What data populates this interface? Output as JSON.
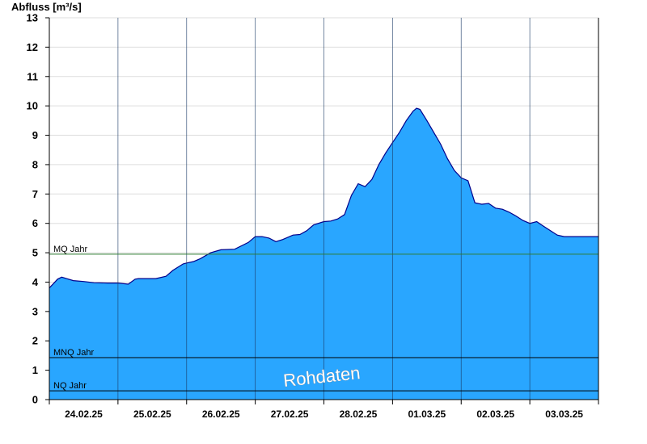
{
  "chart_data": {
    "type": "area",
    "ylabel": "Abfluss [m³/s]",
    "ylim": [
      0,
      13
    ],
    "yticks": [
      0,
      1,
      2,
      3,
      4,
      5,
      6,
      7,
      8,
      9,
      10,
      11,
      12,
      13
    ],
    "xlim": [
      0,
      8
    ],
    "x_tick_labels": [
      "24.02.25",
      "25.02.25",
      "26.02.25",
      "27.02.25",
      "28.02.25",
      "01.03.25",
      "02.03.25",
      "03.03.25"
    ],
    "watermark": "Rohdaten",
    "colors": {
      "fill": "#29a6ff",
      "line": "#00008b",
      "mq": "#2e7d32",
      "ref": "#000000",
      "grid": "#dddddd"
    },
    "reference_lines": [
      {
        "label": "MQ Jahr",
        "value": 4.95
      },
      {
        "label": "MNQ Jahr",
        "value": 1.43
      },
      {
        "label": "NQ Jahr",
        "value": 0.3
      }
    ],
    "series": [
      {
        "x": [
          0,
          0.06,
          0.12,
          0.18,
          0.25,
          0.35,
          0.5,
          0.65,
          0.85,
          1.0,
          1.15,
          1.25,
          1.3,
          1.4,
          1.55,
          1.7,
          1.8,
          1.95,
          2.0,
          2.1,
          2.2,
          2.35,
          2.5,
          2.7,
          2.9,
          3.0,
          3.1,
          3.2,
          3.3,
          3.4,
          3.55,
          3.65,
          3.75,
          3.85,
          4.0,
          4.1,
          4.2,
          4.3,
          4.4,
          4.5,
          4.6,
          4.7,
          4.8,
          4.9,
          5.0,
          5.1,
          5.2,
          5.3,
          5.35,
          5.4,
          5.5,
          5.6,
          5.7,
          5.8,
          5.9,
          6.0,
          6.1,
          6.2,
          6.3,
          6.4,
          6.5,
          6.6,
          6.7,
          6.8,
          6.9,
          7.0,
          7.1,
          7.2,
          7.3,
          7.4,
          7.5,
          7.6,
          7.7,
          7.8,
          7.9,
          8.0
        ],
        "y": [
          3.8,
          3.95,
          4.1,
          4.17,
          4.12,
          4.05,
          4.02,
          3.98,
          3.97,
          3.97,
          3.93,
          4.1,
          4.12,
          4.12,
          4.12,
          4.2,
          4.4,
          4.62,
          4.65,
          4.7,
          4.8,
          5.0,
          5.1,
          5.12,
          5.35,
          5.55,
          5.55,
          5.5,
          5.38,
          5.45,
          5.6,
          5.62,
          5.75,
          5.95,
          6.06,
          6.08,
          6.15,
          6.3,
          6.95,
          7.35,
          7.25,
          7.5,
          8.0,
          8.4,
          8.75,
          9.1,
          9.5,
          9.82,
          9.92,
          9.88,
          9.5,
          9.1,
          8.7,
          8.2,
          7.8,
          7.55,
          7.45,
          6.7,
          6.65,
          6.68,
          6.52,
          6.48,
          6.38,
          6.25,
          6.1,
          6.0,
          6.06,
          5.9,
          5.75,
          5.6,
          5.55,
          5.55,
          5.55,
          5.55,
          5.55,
          5.55
        ]
      }
    ]
  }
}
